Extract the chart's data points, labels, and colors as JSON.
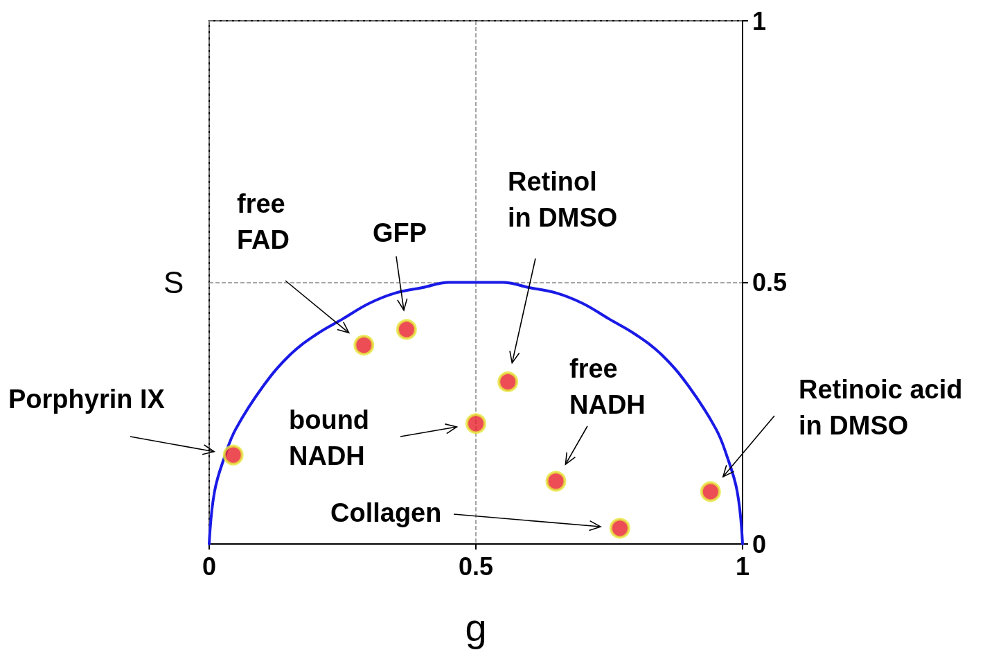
{
  "chart_data": {
    "type": "scatter",
    "xlabel": "g",
    "ylabel": "S",
    "xlim": [
      0,
      1
    ],
    "ylim": [
      0,
      1
    ],
    "xticks": [
      0,
      0.5,
      1
    ],
    "yticks": [
      0,
      0.5,
      1
    ],
    "grid": true,
    "series": [
      {
        "type": "line",
        "color": "#1a1ae6",
        "marker": "none",
        "line_style": "solid",
        "x": [
          0,
          0.01,
          0.03,
          0.05,
          0.1,
          0.15,
          0.2,
          0.25,
          0.3,
          0.35,
          0.4,
          0.45,
          0.5,
          0.55,
          0.6,
          0.65,
          0.7,
          0.75,
          0.8,
          0.85,
          0.9,
          0.95,
          0.97,
          0.99,
          1
        ],
        "values": [
          0,
          0.1,
          0.17,
          0.22,
          0.3,
          0.36,
          0.4,
          0.43,
          0.46,
          0.48,
          0.49,
          0.5,
          0.5,
          0.5,
          0.49,
          0.48,
          0.46,
          0.43,
          0.4,
          0.36,
          0.3,
          0.22,
          0.17,
          0.1,
          0
        ]
      },
      {
        "color": "#e8202a",
        "marker": "circle",
        "x": [
          0.045,
          0.29,
          0.37,
          0.56,
          0.5,
          0.65,
          0.94,
          0.77
        ],
        "values": [
          0.17,
          0.38,
          0.41,
          0.31,
          0.23,
          0.12,
          0.1,
          0.03
        ]
      }
    ],
    "annotations": [
      "Porphyrin IX",
      "free\nFAD",
      "GFP",
      "Retinol\nin DMSO",
      "bound\nNADH",
      "free\nNADH",
      "Retinoic acid\nin DMSO",
      "Collagen"
    ]
  }
}
